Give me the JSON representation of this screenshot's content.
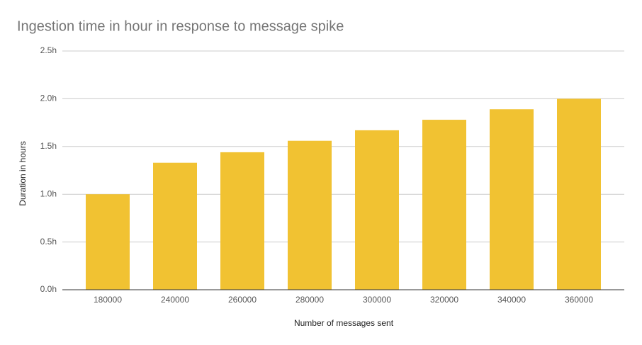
{
  "chart_data": {
    "type": "bar",
    "title": "Ingestion time in hour in response to message spike",
    "x_label": "Number of messages sent",
    "y_label": "Duration in hours",
    "categories": [
      "180000",
      "240000",
      "260000",
      "280000",
      "300000",
      "320000",
      "340000",
      "360000"
    ],
    "values": [
      1.0,
      1.33,
      1.44,
      1.56,
      1.67,
      1.78,
      1.89,
      2.0
    ],
    "color": "#f1c232",
    "ylim": [
      0,
      2.5
    ],
    "yticks": [
      {
        "value": 0,
        "label": "0.0h"
      },
      {
        "value": 0.5,
        "label": "0.5h"
      },
      {
        "value": 1,
        "label": "1.0h"
      },
      {
        "value": 1.5,
        "label": "1.5h"
      },
      {
        "value": 2,
        "label": "2.0h"
      },
      {
        "value": 2.5,
        "label": "2.5h"
      }
    ],
    "grid": true
  }
}
